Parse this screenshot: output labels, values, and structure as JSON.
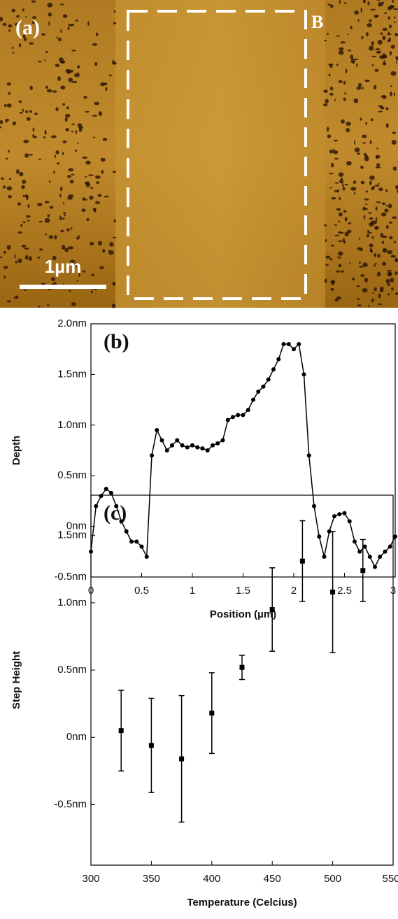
{
  "panel_a": {
    "label": "(a)",
    "region": "B",
    "scale_bar": "1µm"
  },
  "chart_data": [
    {
      "type": "line",
      "annotation": "(b)",
      "xlabel": "Position (µm)",
      "ylabel": "Depth",
      "color": "#000000",
      "x": [
        0,
        0.05,
        0.1,
        0.15,
        0.2,
        0.25,
        0.3,
        0.35,
        0.4,
        0.45,
        0.5,
        0.55,
        0.6,
        0.65,
        0.7,
        0.75,
        0.8,
        0.85,
        0.9,
        0.95,
        1,
        1.05,
        1.1,
        1.15,
        1.2,
        1.25,
        1.3,
        1.35,
        1.4,
        1.45,
        1.5,
        1.55,
        1.6,
        1.65,
        1.7,
        1.75,
        1.8,
        1.85,
        1.9,
        1.95,
        2,
        2.05,
        2.1,
        2.15,
        2.2,
        2.25,
        2.3,
        2.35,
        2.4,
        2.45,
        2.5,
        2.55,
        2.6,
        2.65,
        2.7,
        2.75,
        2.8,
        2.85,
        2.9,
        2.95,
        3
      ],
      "values": [
        -0.25,
        0.2,
        0.3,
        0.37,
        0.33,
        0.2,
        0.05,
        -0.05,
        -0.15,
        -0.15,
        -0.2,
        -0.3,
        0.7,
        0.95,
        0.85,
        0.75,
        0.8,
        0.85,
        0.8,
        0.78,
        0.8,
        0.78,
        0.77,
        0.75,
        0.8,
        0.82,
        0.85,
        1.05,
        1.08,
        1.1,
        1.1,
        1.15,
        1.25,
        1.33,
        1.38,
        1.45,
        1.55,
        1.65,
        1.8,
        1.8,
        1.75,
        1.8,
        1.5,
        0.7,
        0.2,
        -0.1,
        -0.3,
        -0.05,
        0.1,
        0.12,
        0.13,
        0.05,
        -0.15,
        -0.25,
        -0.2,
        -0.3,
        -0.4,
        -0.3,
        -0.25,
        -0.2,
        -0.1
      ],
      "xlim": [
        0,
        3
      ],
      "xticks": [
        0,
        0.5,
        1,
        1.5,
        2,
        2.5,
        3
      ],
      "ylim": [
        -0.5,
        2.0
      ],
      "yticks": [
        {
          "value": -0.5,
          "label": "-0.5nm"
        },
        {
          "value": 0,
          "label": "0nm"
        },
        {
          "value": 0.5,
          "label": "0.5nm"
        },
        {
          "value": 1.0,
          "label": "1.0nm"
        },
        {
          "value": 1.5,
          "label": "1.5nm"
        },
        {
          "value": 2.0,
          "label": "2.0nm"
        }
      ]
    },
    {
      "type": "scatter",
      "annotation": "(c)",
      "xlabel": "Temperature (Celcius)",
      "ylabel": "Step Height",
      "color": "#000000",
      "x": [
        325,
        350,
        375,
        400,
        425,
        450,
        475,
        500,
        525
      ],
      "values": [
        0.05,
        -0.06,
        -0.16,
        0.18,
        0.52,
        0.95,
        1.31,
        1.08,
        1.24
      ],
      "errors": [
        0.3,
        0.35,
        0.47,
        0.3,
        0.09,
        0.31,
        0.3,
        0.45,
        0.23
      ],
      "xlim": [
        300,
        550
      ],
      "xticks": [
        300,
        350,
        400,
        450,
        500,
        550
      ],
      "ylim": [
        -0.95,
        1.8
      ],
      "yticks": [
        {
          "value": -0.5,
          "label": "-0.5nm"
        },
        {
          "value": 0,
          "label": "0nm"
        },
        {
          "value": 0.5,
          "label": "0.5nm"
        },
        {
          "value": 1.0,
          "label": "1.0nm"
        },
        {
          "value": 1.5,
          "label": "1.5nm"
        }
      ]
    }
  ]
}
